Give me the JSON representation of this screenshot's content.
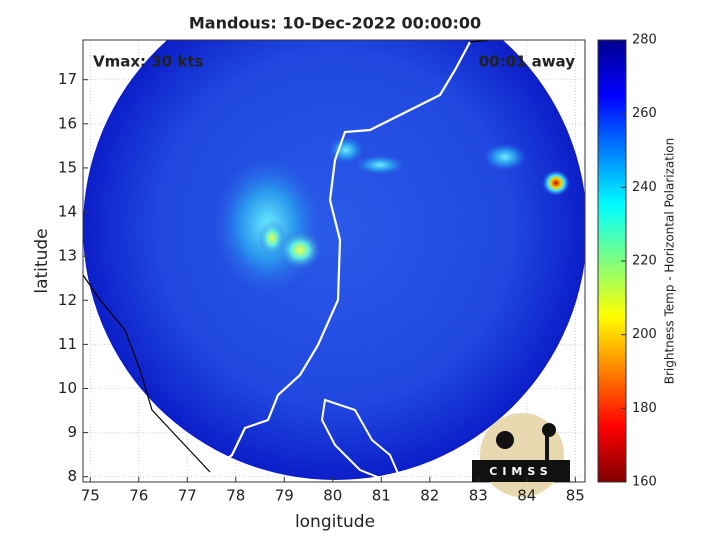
{
  "title": "Mandous: 10-Dec-2022 00:00:00",
  "annotations": {
    "vmax": "Vmax: 30 kts",
    "time_away": "00:01 away"
  },
  "axes": {
    "xlabel": "longitude",
    "ylabel": "latitude",
    "xlim": [
      74.85,
      85.2
    ],
    "ylim": [
      7.88,
      17.9
    ],
    "xticks": [
      75,
      76,
      77,
      78,
      79,
      80,
      81,
      82,
      83,
      84,
      85
    ],
    "yticks": [
      8,
      9,
      10,
      11,
      12,
      13,
      14,
      15,
      16,
      17
    ]
  },
  "colorbar": {
    "label": "Brightness Temp - Horizontal Polarization",
    "lim": [
      160,
      280
    ],
    "ticks": [
      160,
      180,
      200,
      220,
      240,
      260,
      280
    ]
  },
  "logo": "CIMSS"
}
